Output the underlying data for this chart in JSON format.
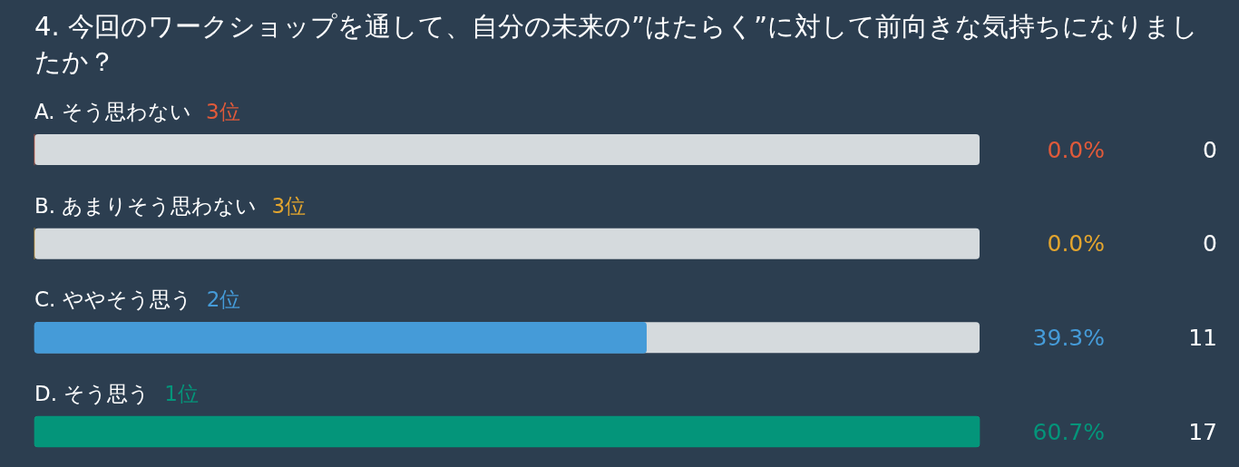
{
  "chart_data": {
    "type": "bar",
    "orientation": "horizontal",
    "title": "4. 今回のワークショップを通して、自分の未来の”はたらく”に対して前向きな気持ちになりましたか？",
    "categories": [
      "A. そう思わない",
      "B. あまりそう思わない",
      "C. ややそう思う",
      "D. そう思う"
    ],
    "values": [
      0,
      0,
      39.3,
      60.7
    ],
    "colors": [
      "#e05a3a",
      "#e3a52e",
      "#459bd8",
      "#04957a"
    ],
    "value_labels": [
      "0.0%",
      "0.0%",
      "39.3%",
      "60.7%"
    ],
    "annotations": [
      "3位",
      "3位",
      "2位",
      "1位",
      "0",
      "0",
      "11",
      "17"
    ]
  }
}
